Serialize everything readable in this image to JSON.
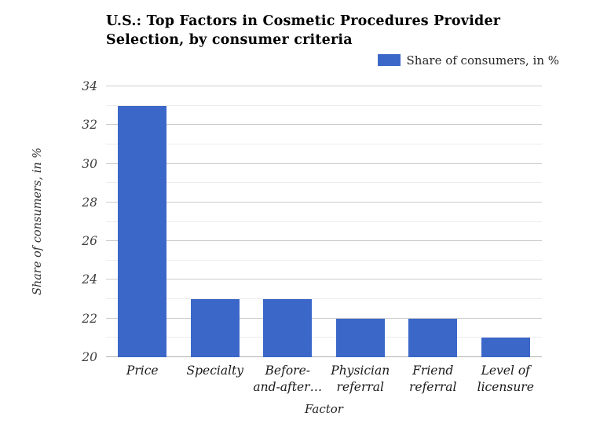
{
  "header": {
    "title": "U.S.: Top Factors in Cosmetic Procedures Provider Selection, by consumer criteria"
  },
  "legend": {
    "label": "Share of consumers, in %",
    "swatch_color": "#3b67c9"
  },
  "chart_data": {
    "type": "bar",
    "title": "U.S.: Top Factors in Cosmetic Procedures Provider Selection, by consumer criteria",
    "categories": [
      "Price",
      "Specialty",
      "Before-and-after…",
      "Physician referral",
      "Friend referral",
      "Level of licensure"
    ],
    "category_display_lines": [
      [
        "Price"
      ],
      [
        "Specialty"
      ],
      [
        "Before-",
        "and-after…"
      ],
      [
        "Physician",
        "referral"
      ],
      [
        "Friend",
        "referral"
      ],
      [
        "Level of",
        "licensure"
      ]
    ],
    "series": [
      {
        "name": "Share of consumers, in %",
        "values": [
          33,
          23,
          23,
          22,
          22,
          21
        ]
      }
    ],
    "values": [
      33,
      23,
      23,
      22,
      22,
      21
    ],
    "xlabel": "Factor",
    "ylabel": "Share of consumers, in %",
    "ylim": [
      20,
      34
    ],
    "y_major_ticks": [
      20,
      22,
      24,
      26,
      28,
      30,
      32,
      34
    ],
    "y_minor_step": 1,
    "grid": true,
    "legend_position": "top-right",
    "bar_color": "#3b67c9",
    "gridline_major_color": "#cccccc",
    "gridline_minor_color": "#ececec",
    "baseline_color": "#b0b0b0"
  }
}
